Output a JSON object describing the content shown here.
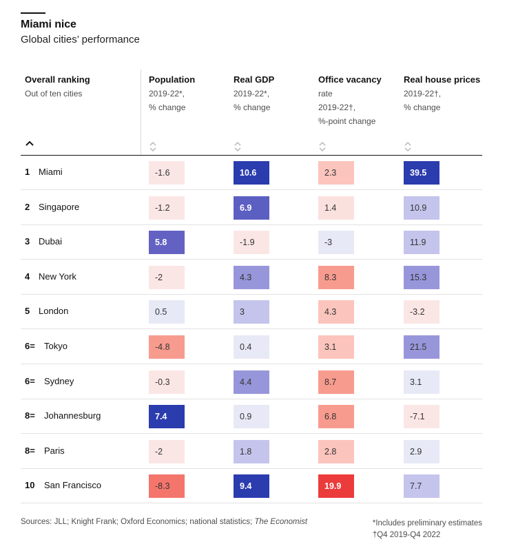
{
  "title": "Miami nice",
  "subtitle": "Global cities’ performance",
  "columns": [
    {
      "name": "Overall ranking",
      "sub": [
        "Out of ten cities"
      ]
    },
    {
      "name": "Population",
      "sub": [
        "2019-22*,",
        "% change"
      ]
    },
    {
      "name": "Real GDP",
      "sub": [
        "2019-22*,",
        "% change"
      ]
    },
    {
      "name": "Office vacancy",
      "sub": [
        "rate",
        "2019-22†,",
        "%-point change"
      ]
    },
    {
      "name": "Real house prices",
      "sub": [
        "2019-22†,",
        "% change"
      ]
    }
  ],
  "chart_data": {
    "type": "table",
    "title": "Miami nice",
    "subtitle": "Global cities’ performance",
    "series_names": [
      "Population",
      "Real GDP",
      "Office vacancy",
      "Real house prices"
    ],
    "rows": [
      {
        "rank": "1",
        "city": "Miami",
        "values": [
          -1.6,
          10.6,
          2.3,
          39.5
        ],
        "labels": [
          "-1.6",
          "10.6",
          "2.3",
          "39.5"
        ]
      },
      {
        "rank": "2",
        "city": "Singapore",
        "values": [
          -1.2,
          6.9,
          1.4,
          10.9
        ],
        "labels": [
          "-1.2",
          "6.9",
          "1.4",
          "10.9"
        ]
      },
      {
        "rank": "3",
        "city": "Dubai",
        "values": [
          5.8,
          -1.9,
          -3,
          11.9
        ],
        "labels": [
          "5.8",
          "-1.9",
          "-3",
          "11.9"
        ]
      },
      {
        "rank": "4",
        "city": "New York",
        "values": [
          -2,
          4.3,
          8.3,
          15.3
        ],
        "labels": [
          "-2",
          "4.3",
          "8.3",
          "15.3"
        ]
      },
      {
        "rank": "5",
        "city": "London",
        "values": [
          0.5,
          3,
          4.3,
          -3.2
        ],
        "labels": [
          "0.5",
          "3",
          "4.3",
          "-3.2"
        ]
      },
      {
        "rank": "6=",
        "city": "Tokyo",
        "values": [
          -4.8,
          0.4,
          3.1,
          21.5
        ],
        "labels": [
          "-4.8",
          "0.4",
          "3.1",
          "21.5"
        ]
      },
      {
        "rank": "6=",
        "city": "Sydney",
        "values": [
          -0.3,
          4.4,
          8.7,
          3.1
        ],
        "labels": [
          "-0.3",
          "4.4",
          "8.7",
          "3.1"
        ]
      },
      {
        "rank": "8=",
        "city": "Johannesburg",
        "values": [
          7.4,
          0.9,
          6.8,
          -7.1
        ],
        "labels": [
          "7.4",
          "0.9",
          "6.8",
          "-7.1"
        ]
      },
      {
        "rank": "8=",
        "city": "Paris",
        "values": [
          -2,
          1.8,
          2.8,
          2.9
        ],
        "labels": [
          "-2",
          "1.8",
          "2.8",
          "2.9"
        ]
      },
      {
        "rank": "10",
        "city": "San Francisco",
        "values": [
          -8.3,
          9.4,
          19.9,
          7.7
        ],
        "labels": [
          "-8.3",
          "9.4",
          "19.9",
          "7.7"
        ]
      }
    ],
    "cell_colors": [
      [
        "#fbe6e6",
        "#2b3cae",
        "#fbc4bd",
        "#2b3cae"
      ],
      [
        "#fbe6e6",
        "#5c5fc2",
        "#fbe1de",
        "#c5c4ec"
      ],
      [
        "#6362c3",
        "#fbe6e6",
        "#e7e9f6",
        "#c5c4ec"
      ],
      [
        "#fbe6e6",
        "#9896da",
        "#f89b8f",
        "#9896da"
      ],
      [
        "#e7e9f6",
        "#c5c4ec",
        "#fbc4bd",
        "#fbe6e6"
      ],
      [
        "#f89b8f",
        "#e7e9f6",
        "#fbc4bd",
        "#9896da"
      ],
      [
        "#fbe6e6",
        "#9896da",
        "#f89b8f",
        "#e7e9f6"
      ],
      [
        "#2b3cae",
        "#e7e9f6",
        "#f89b8f",
        "#fbe6e6"
      ],
      [
        "#fbe6e6",
        "#c5c4ec",
        "#fbc4bd",
        "#e7e9f6"
      ],
      [
        "#f4756b",
        "#2b3cae",
        "#ec3b3b",
        "#c5c4ec"
      ]
    ]
  },
  "footer": {
    "sources_prefix": "Sources: JLL; Knight Frank; Oxford Economics; national statistics; ",
    "sources_italic": "The Economist",
    "note1": "*Includes preliminary estimates",
    "note2": "†Q4 2019-Q4 2022"
  }
}
